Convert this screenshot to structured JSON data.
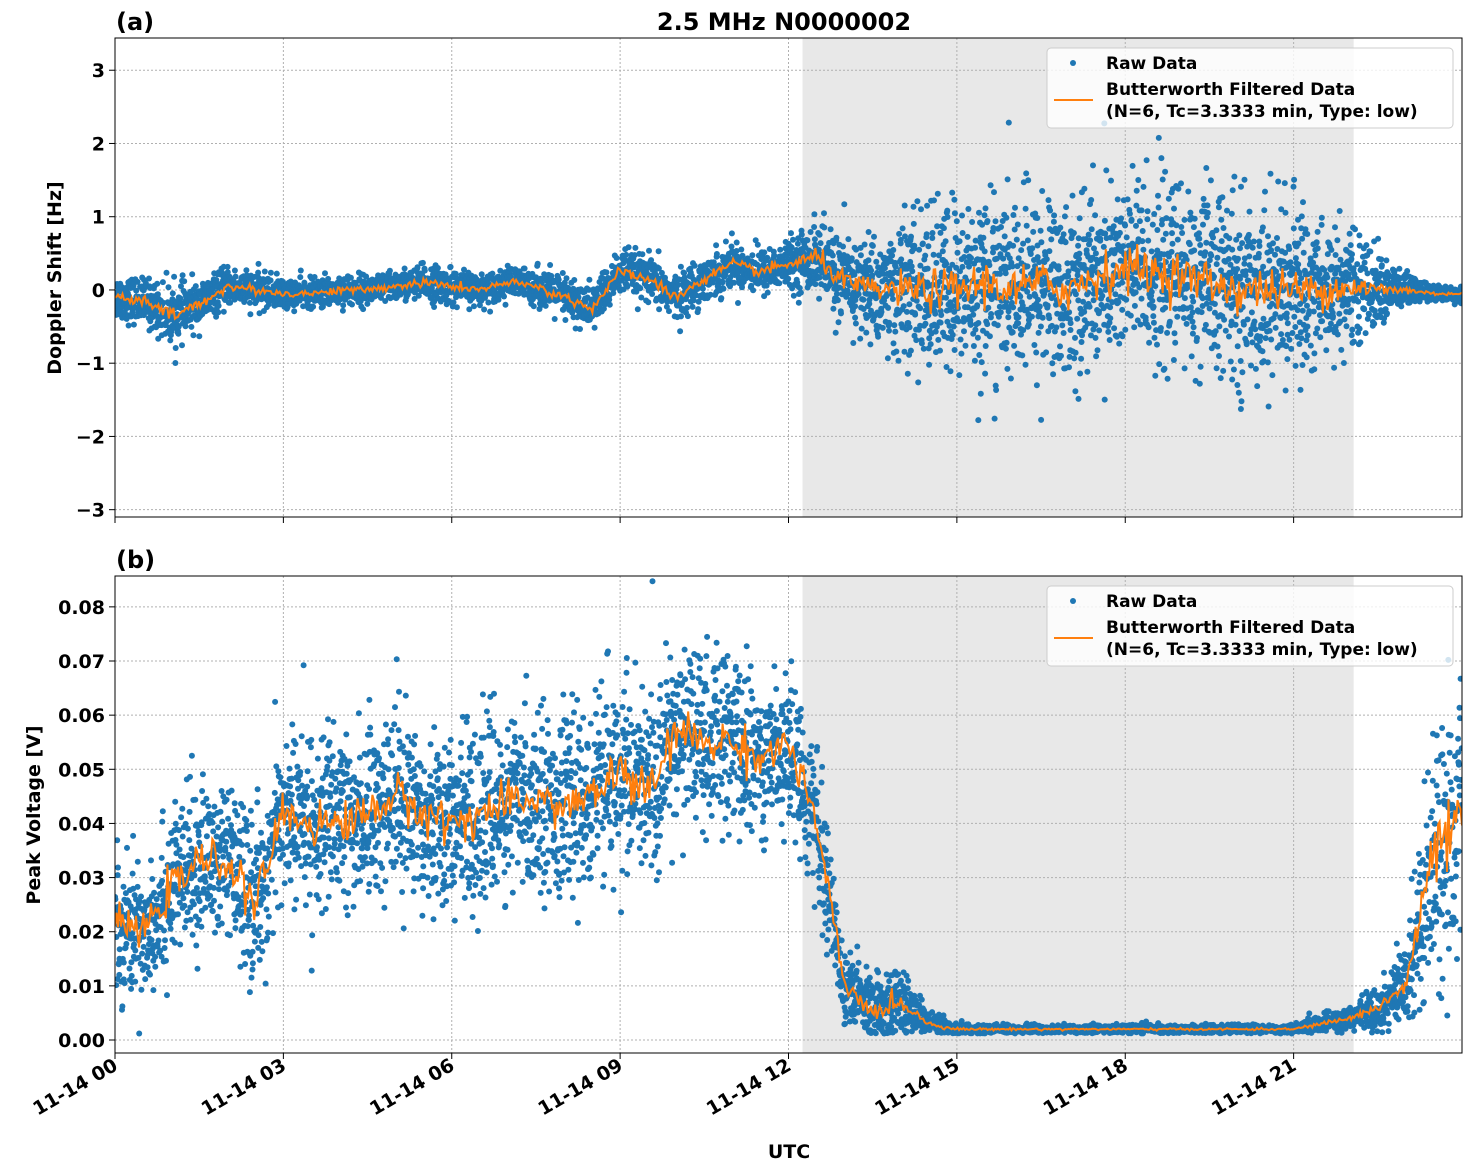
{
  "chart_data": [
    {
      "type": "scatter+line",
      "panel_label": "(a)",
      "title": "2.5 MHz N0000002",
      "xlabel": "",
      "ylabel": "Doppler Shift [Hz]",
      "xlim_hours_utc": [
        0,
        24
      ],
      "ylim": [
        -3.1,
        3.44
      ],
      "yticks": [
        -3,
        -2,
        -1,
        0,
        1,
        2,
        3
      ],
      "ytick_labels": [
        "−3",
        "−2",
        "−1",
        "0",
        "1",
        "2",
        "3"
      ],
      "grid": true,
      "legend_position": "top-right",
      "shaded_span_hours_utc": [
        12.25,
        22.07
      ],
      "series": [
        {
          "name": "Raw Data",
          "kind": "scatter",
          "color": "#1f77b4"
        },
        {
          "name": "Butterworth Filtered Data\n(N=6, Tc=3.3333 min, Type: low)",
          "kind": "line",
          "color": "#ff7f0e"
        }
      ],
      "legend": [
        "Raw Data",
        "Butterworth Filtered Data",
        "(N=6, Tc=3.3333 min, Type: low)"
      ],
      "x_hours": [
        0,
        0.5,
        1,
        1.5,
        2,
        2.5,
        3,
        3.5,
        4,
        4.5,
        5,
        5.5,
        6,
        6.5,
        7,
        7.5,
        8,
        8.5,
        9,
        9.5,
        10,
        10.5,
        11,
        11.5,
        12,
        12.5,
        13,
        13.5,
        14,
        14.5,
        15,
        15.5,
        16,
        16.5,
        17,
        17.5,
        18,
        18.5,
        19,
        19.5,
        20,
        20.5,
        21,
        21.5,
        22,
        22.5,
        23,
        23.5,
        24
      ],
      "filtered_approx": [
        -0.1,
        -0.15,
        -0.35,
        -0.2,
        0.05,
        0.0,
        -0.05,
        -0.05,
        0.0,
        0.0,
        0.05,
        0.1,
        0.05,
        0.0,
        0.1,
        0.05,
        -0.1,
        -0.25,
        0.25,
        0.15,
        -0.1,
        0.15,
        0.35,
        0.25,
        0.35,
        0.45,
        0.1,
        0.0,
        0.0,
        0.0,
        0.0,
        0.1,
        0.0,
        0.1,
        0.0,
        0.2,
        0.3,
        0.25,
        0.2,
        0.1,
        0.0,
        0.0,
        0.0,
        0.0,
        0.05,
        0.0,
        0.0,
        -0.05,
        -0.05
      ],
      "raw_spread_std": [
        0.15,
        0.15,
        0.2,
        0.15,
        0.12,
        0.12,
        0.1,
        0.1,
        0.1,
        0.1,
        0.1,
        0.12,
        0.12,
        0.1,
        0.1,
        0.12,
        0.15,
        0.15,
        0.15,
        0.15,
        0.15,
        0.15,
        0.15,
        0.15,
        0.15,
        0.25,
        0.3,
        0.35,
        0.45,
        0.55,
        0.6,
        0.6,
        0.6,
        0.6,
        0.6,
        0.62,
        0.62,
        0.62,
        0.6,
        0.6,
        0.6,
        0.58,
        0.55,
        0.5,
        0.38,
        0.25,
        0.12,
        0.05,
        0.05
      ]
    },
    {
      "type": "scatter+line",
      "panel_label": "(b)",
      "title": "",
      "xlabel": "UTC",
      "ylabel": "Peak Voltage [V]",
      "xlim_hours_utc": [
        0,
        24
      ],
      "ylim": [
        -0.0024,
        0.0857
      ],
      "yticks": [
        0,
        0.01,
        0.02,
        0.03,
        0.04,
        0.05,
        0.06,
        0.07,
        0.08
      ],
      "ytick_labels": [
        "0.00",
        "0.01",
        "0.02",
        "0.03",
        "0.04",
        "0.05",
        "0.06",
        "0.07",
        "0.08"
      ],
      "xticks_hours": [
        0,
        3,
        6,
        9,
        12,
        15,
        18,
        21
      ],
      "xtick_labels": [
        "11-14 00",
        "11-14 03",
        "11-14 06",
        "11-14 09",
        "11-14 12",
        "11-14 15",
        "11-14 18",
        "11-14 21"
      ],
      "grid": true,
      "legend_position": "top-right",
      "shaded_span_hours_utc": [
        12.25,
        22.07
      ],
      "series": [
        {
          "name": "Raw Data",
          "kind": "scatter",
          "color": "#1f77b4"
        },
        {
          "name": "Butterworth Filtered Data\n(N=6, Tc=3.3333 min, Type: low)",
          "kind": "line",
          "color": "#ff7f0e"
        }
      ],
      "legend": [
        "Raw Data",
        "Butterworth Filtered Data",
        "(N=6, Tc=3.3333 min, Type: low)"
      ],
      "x_hours": [
        0,
        0.5,
        1,
        1.5,
        2,
        2.5,
        3,
        3.5,
        4,
        4.5,
        5,
        5.5,
        6,
        6.5,
        7,
        7.5,
        8,
        8.5,
        9,
        9.5,
        10,
        10.5,
        11,
        11.5,
        12,
        12.5,
        13,
        13.5,
        14,
        14.5,
        15,
        15.5,
        16,
        16.5,
        17,
        17.5,
        18,
        18.5,
        19,
        19.5,
        20,
        20.5,
        21,
        21.5,
        22,
        22.5,
        23,
        23.5,
        24
      ],
      "filtered_approx": [
        0.022,
        0.02,
        0.028,
        0.033,
        0.033,
        0.025,
        0.042,
        0.04,
        0.04,
        0.042,
        0.045,
        0.042,
        0.04,
        0.042,
        0.043,
        0.045,
        0.043,
        0.045,
        0.05,
        0.045,
        0.057,
        0.055,
        0.055,
        0.052,
        0.055,
        0.04,
        0.01,
        0.005,
        0.007,
        0.003,
        0.002,
        0.002,
        0.002,
        0.002,
        0.002,
        0.002,
        0.002,
        0.002,
        0.002,
        0.002,
        0.002,
        0.002,
        0.002,
        0.003,
        0.004,
        0.006,
        0.01,
        0.035,
        0.04
      ],
      "raw_spread_std": [
        0.006,
        0.006,
        0.007,
        0.007,
        0.007,
        0.007,
        0.008,
        0.008,
        0.008,
        0.008,
        0.008,
        0.008,
        0.008,
        0.008,
        0.008,
        0.008,
        0.008,
        0.008,
        0.009,
        0.009,
        0.008,
        0.008,
        0.008,
        0.007,
        0.007,
        0.006,
        0.004,
        0.003,
        0.003,
        0.001,
        0.0005,
        0.0004,
        0.0004,
        0.0004,
        0.0004,
        0.0004,
        0.0004,
        0.0004,
        0.0004,
        0.0004,
        0.0004,
        0.0004,
        0.0004,
        0.0008,
        0.001,
        0.002,
        0.004,
        0.012,
        0.012
      ]
    }
  ]
}
